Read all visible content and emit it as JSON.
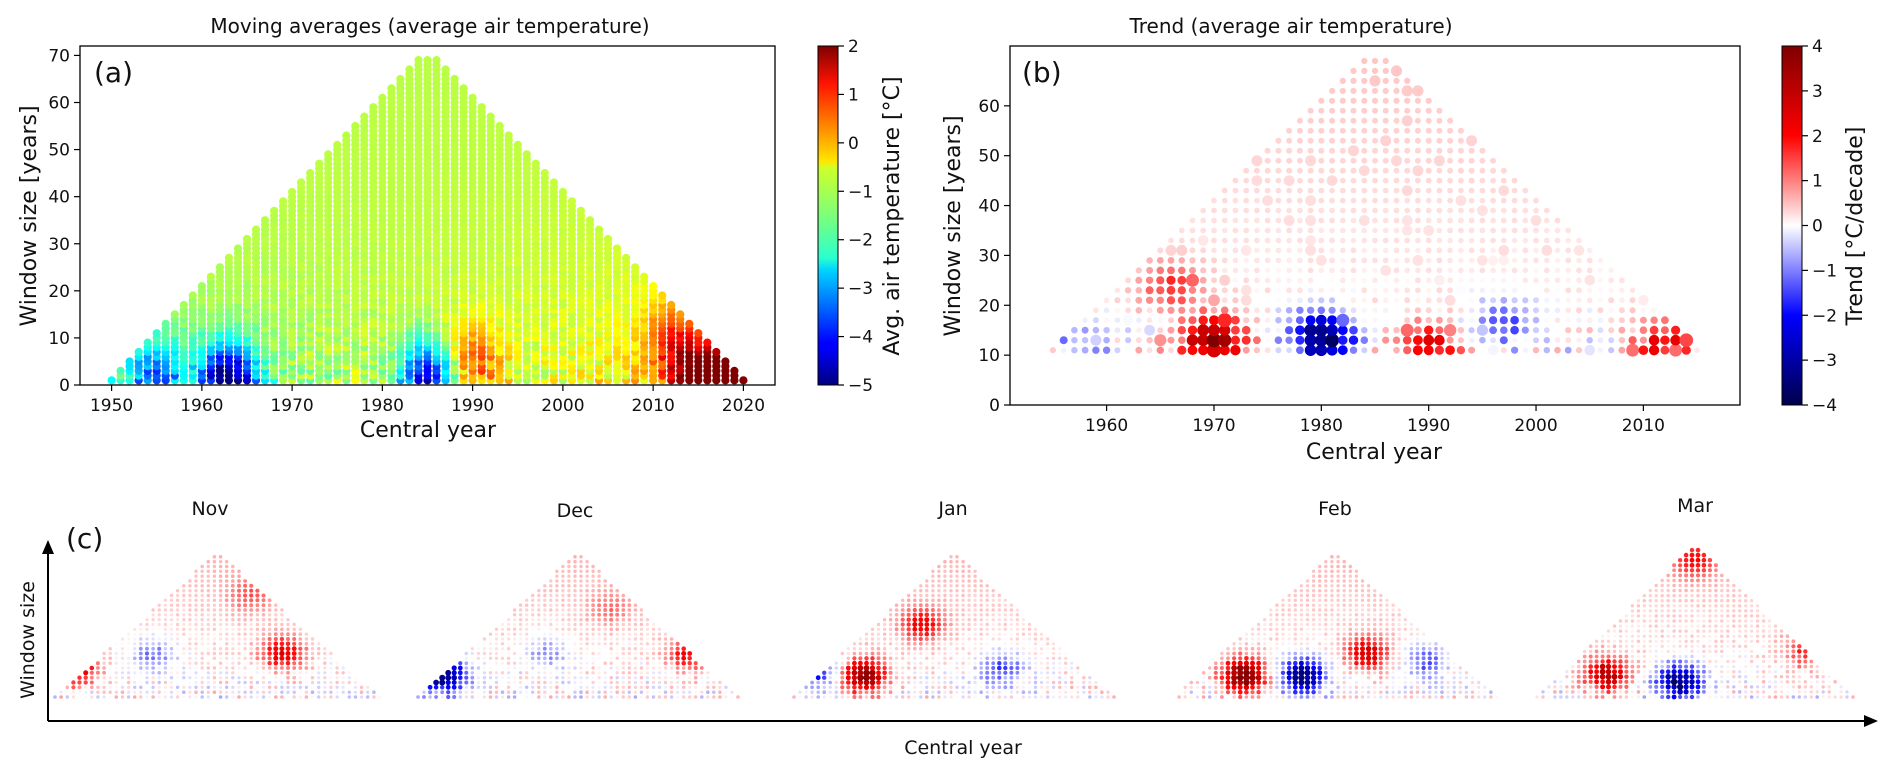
{
  "chart_data": [
    {
      "panel": "a",
      "panel_label": "(a)",
      "type": "scatter",
      "title": "Moving averages (average air temperature)",
      "xlabel": "Central year",
      "ylabel": "Window size [years]",
      "xticks": [
        1950,
        1960,
        1970,
        1980,
        1990,
        2000,
        2010,
        2020
      ],
      "yticks": [
        0,
        10,
        20,
        30,
        40,
        50,
        60,
        70
      ],
      "xlim": [
        1946.5,
        2023.5
      ],
      "ylim": [
        0,
        72
      ],
      "colorbar": {
        "label": "Avg. air temperature [°C]",
        "colormap": "jet",
        "range": [
          -5,
          2
        ],
        "ticks": [
          -5,
          -4,
          -3,
          -2,
          -1,
          0,
          1,
          2
        ]
      },
      "grid": false,
      "data_domain": {
        "year_min": 1950,
        "year_max": 2020,
        "window_min": 1,
        "window_max": 69,
        "window_step": 1
      },
      "approx_surface": {
        "baseline": -1.0,
        "long_window_value": -1.1,
        "hotspots": [
          {
            "year": 2015,
            "window": 1,
            "value": 1.8
          },
          {
            "year": 2019,
            "window": 1,
            "value": 1.9
          },
          {
            "year": 1990,
            "window": 5,
            "value": 0.5
          },
          {
            "year": 2012,
            "window": 10,
            "value": 0.4
          }
        ],
        "coldspots": [
          {
            "year": 1963,
            "window": 1,
            "value": -4.8
          },
          {
            "year": 1985,
            "window": 1,
            "value": -4.5
          },
          {
            "year": 1955,
            "window": 1,
            "value": -3.0
          }
        ]
      }
    },
    {
      "panel": "b",
      "panel_label": "(b)",
      "type": "scatter",
      "title": "Trend (average air temperature)",
      "xlabel": "Central year",
      "ylabel": "Window size [years]",
      "xticks": [
        1960,
        1970,
        1980,
        1990,
        2000,
        2010
      ],
      "yticks": [
        0,
        10,
        20,
        30,
        40,
        50,
        60
      ],
      "xlim": [
        1951,
        2019
      ],
      "ylim": [
        0,
        72
      ],
      "colorbar": {
        "label": "Trend [°C/decade]",
        "colormap": "seismic",
        "range": [
          -4,
          4
        ],
        "ticks": [
          -4,
          -3,
          -2,
          -1,
          0,
          1,
          2,
          3,
          4
        ]
      },
      "grid": false,
      "data_domain": {
        "year_min": 1955,
        "year_max": 2015,
        "window_min": 11,
        "window_max": 69,
        "window_step": 2
      },
      "approx_surface": {
        "long_window_value": 0.5,
        "warm_spots": [
          {
            "year": 1970,
            "window": 13,
            "value": 3.5
          },
          {
            "year": 1990,
            "window": 12,
            "value": 2.0
          },
          {
            "year": 2012,
            "window": 12,
            "value": 2.0
          },
          {
            "year": 1966,
            "window": 24,
            "value": 1.5
          }
        ],
        "cool_spots": [
          {
            "year": 1980,
            "window": 14,
            "value": -3.8
          },
          {
            "year": 1997,
            "window": 17,
            "value": -1.5
          },
          {
            "year": 1958,
            "window": 13,
            "value": -1.0
          }
        ]
      }
    },
    {
      "panel": "c",
      "panel_label": "(c)",
      "type": "scatter",
      "xlabel": "Central year",
      "ylabel": "Window size",
      "colormap": "seismic",
      "subplots": [
        {
          "title": "Nov",
          "pattern": [
            [
              0.05,
              0.2,
              3.0
            ],
            [
              0.7,
              0.3,
              2.2
            ],
            [
              0.3,
              0.3,
              -1.2
            ],
            [
              0.6,
              0.7,
              1.0
            ]
          ]
        },
        {
          "title": "Dec",
          "pattern": [
            [
              0.08,
              0.15,
              -3.5
            ],
            [
              0.85,
              0.3,
              2.0
            ],
            [
              0.4,
              0.3,
              -1.0
            ],
            [
              0.6,
              0.6,
              0.8
            ]
          ]
        },
        {
          "title": "Jan",
          "pattern": [
            [
              0.22,
              0.15,
              3.5
            ],
            [
              0.4,
              0.5,
              2.0
            ],
            [
              0.06,
              0.2,
              -2.5
            ],
            [
              0.65,
              0.2,
              -1.5
            ]
          ]
        },
        {
          "title": "Feb",
          "pattern": [
            [
              0.22,
              0.15,
              4.0
            ],
            [
              0.4,
              0.15,
              -3.5
            ],
            [
              0.6,
              0.3,
              2.5
            ],
            [
              0.78,
              0.25,
              -1.5
            ]
          ]
        },
        {
          "title": "Mar",
          "pattern": [
            [
              0.22,
              0.15,
              3.0
            ],
            [
              0.45,
              0.1,
              -3.5
            ],
            [
              0.5,
              0.9,
              1.5
            ],
            [
              0.85,
              0.3,
              1.5
            ]
          ]
        }
      ]
    }
  ]
}
